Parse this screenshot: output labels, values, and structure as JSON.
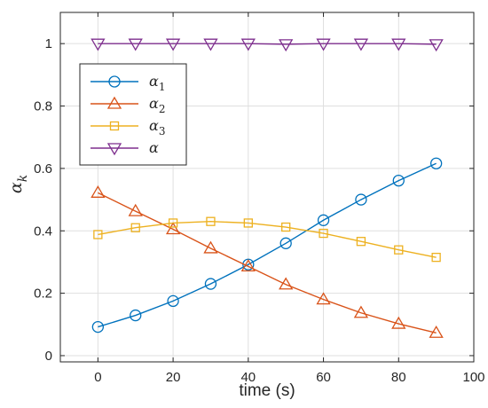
{
  "chart_data": {
    "type": "line",
    "xlabel": "time (s)",
    "ylabel": "α",
    "ylabel_sub": "k",
    "xlim": [
      -10,
      100
    ],
    "ylim": [
      -0.02,
      1.1
    ],
    "xticks": [
      0,
      20,
      40,
      60,
      80,
      100
    ],
    "yticks": [
      0,
      0.2,
      0.4,
      0.6,
      0.8,
      1
    ],
    "grid": true,
    "legend_position": "top-left",
    "x": [
      0,
      10,
      20,
      30,
      40,
      50,
      60,
      70,
      80,
      90
    ],
    "series": [
      {
        "name": "α",
        "sub": "1",
        "color": "#0072BD",
        "marker": "circle",
        "values": [
          0.092,
          0.129,
          0.175,
          0.23,
          0.292,
          0.36,
          0.434,
          0.5,
          0.561,
          0.616
        ]
      },
      {
        "name": "α",
        "sub": "2",
        "color": "#D95319",
        "marker": "triangle-up",
        "values": [
          0.522,
          0.463,
          0.405,
          0.344,
          0.286,
          0.228,
          0.18,
          0.137,
          0.102,
          0.073
        ]
      },
      {
        "name": "α",
        "sub": "3",
        "color": "#EDB120",
        "marker": "square",
        "values": [
          0.388,
          0.41,
          0.425,
          0.43,
          0.425,
          0.412,
          0.392,
          0.366,
          0.339,
          0.315
        ]
      },
      {
        "name": "α",
        "sub": "",
        "color": "#7E2F8E",
        "marker": "triangle-down",
        "values": [
          1.0,
          1.0,
          1.0,
          1.0,
          1.0,
          0.998,
          1.0,
          1.0,
          1.0,
          0.998
        ]
      }
    ]
  }
}
